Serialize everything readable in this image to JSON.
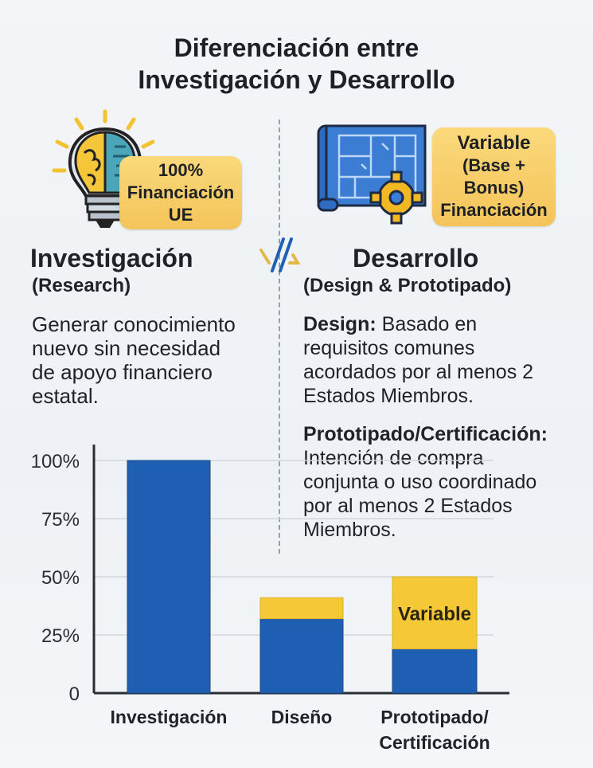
{
  "title": {
    "line1": "Diferenciación entre",
    "line2": "Investigación y Desarrollo"
  },
  "left": {
    "icon": "lightbulb-brain-icon",
    "badge": {
      "line1": "100%",
      "line2": "Financiación",
      "line3": "UE"
    },
    "heading": "Investigación",
    "subheading": "(Research)",
    "description": [
      "Generar conocimiento",
      "nuevo sin necesidad",
      "de apoyo financiero",
      "estatal."
    ]
  },
  "right": {
    "icon": "blueprint-gear-icon",
    "badge": {
      "line1": "Variable",
      "line2": "(Base +",
      "line3": "Bonus)",
      "line4": "Financiación"
    },
    "heading": "Desarrollo",
    "subheading": "(Design & Prototipado)",
    "design_label": "Design:",
    "design_text": [
      "Basado en",
      "requisitos comunes",
      "acordados por al menos 2",
      "Estados Miembros."
    ],
    "proto_label": "Prototipado/Certificación:",
    "proto_text": [
      "Intención de compra",
      "conjunta o uso coordinado",
      "por al menos 2 Estados",
      "Miembros."
    ]
  },
  "separator_icon": "double-slash-icon",
  "colors": {
    "blue": "#1f5fb3",
    "yellow": "#f5c838",
    "badge": "#f4c45a"
  },
  "chart_data": {
    "type": "bar",
    "categories": [
      "Investigación",
      "Diseño",
      "Prototipado/\nCertificación"
    ],
    "category_lines": [
      [
        "Investigación"
      ],
      [
        "Diseño"
      ],
      [
        "Prototipado/",
        "Certificación"
      ]
    ],
    "series": [
      {
        "values": [
          100,
          32,
          19
        ],
        "color": "#1f5fb3"
      },
      {
        "values": [
          0,
          9,
          31
        ],
        "color": "#f5c838"
      }
    ],
    "bar_annotations": [
      "",
      "",
      "Variable"
    ],
    "yticks": [
      "0",
      "25%",
      "50%",
      "75%",
      "100%"
    ],
    "ytick_values": [
      0,
      25,
      50,
      75,
      100
    ],
    "ylim": [
      0,
      100
    ],
    "grid": true
  }
}
